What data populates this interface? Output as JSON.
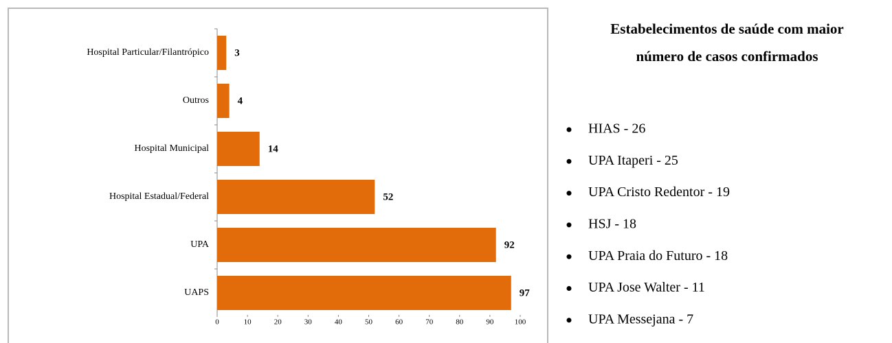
{
  "chart_data": {
    "type": "hbar",
    "categories": [
      "Hospital Particular/Filantrópico",
      "Outros",
      "Hospital Municipal",
      "Hospital Estadual/Federal",
      "UPA",
      "UAPS"
    ],
    "values": [
      3,
      4,
      14,
      52,
      92,
      97
    ],
    "color": "#e36c0a",
    "xlim": [
      0,
      100
    ],
    "xticks": [
      0,
      10,
      20,
      30,
      40,
      50,
      60,
      70,
      80,
      90,
      100
    ]
  },
  "panel": {
    "title": [
      "Estabelecimentos de saúde com maior",
      "número de casos confirmados"
    ],
    "items": [
      "HIAS - 26",
      "UPA Itaperi - 25",
      "UPA Cristo Redentor - 19",
      "HSJ - 18",
      "UPA Praia do Futuro - 18",
      "UPA Jose Walter - 11",
      "UPA Messejana - 7"
    ]
  }
}
